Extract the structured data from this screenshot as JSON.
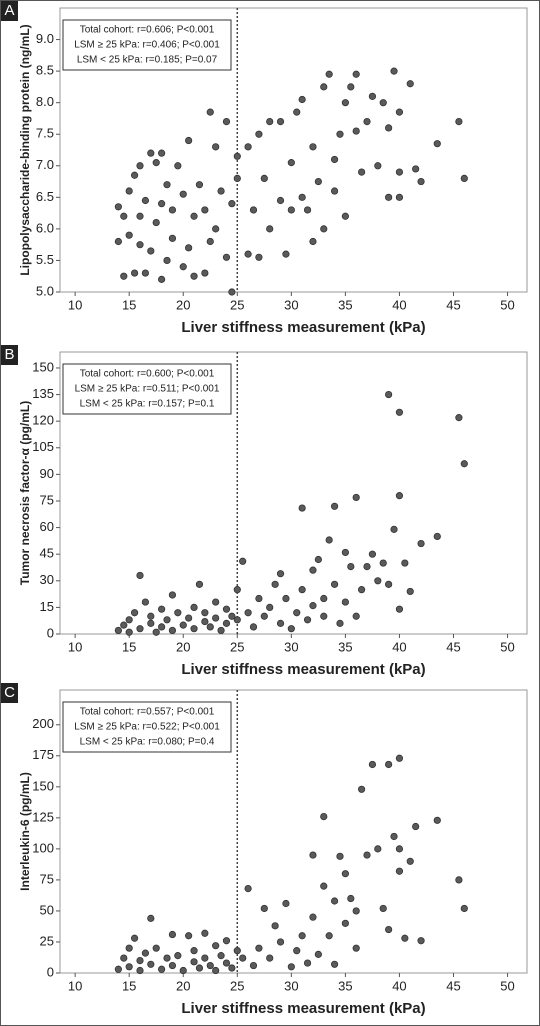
{
  "chart_data": [
    {
      "type": "scatter",
      "panel": "A",
      "xlabel": "Liver stiffness measurement (kPa)",
      "ylabel": "Lipopolysaccharide-binding protein (ng/mL)",
      "annotation": [
        "Total cohort: r=0.606; P<0.001",
        "LSM ≥ 25 kPa: r=0.406; P<0.001",
        "LSM < 25 kPa: r=0.185; P=0.07"
      ],
      "color": "#5a5a5a",
      "vline": 25,
      "xlim": [
        8.6,
        51.8
      ],
      "xticks": [
        10,
        15,
        20,
        25,
        30,
        35,
        40,
        45,
        50
      ],
      "ylim": [
        5.0,
        9.5
      ],
      "yticks": [
        {
          "value": 5,
          "label": "5.0"
        },
        5.5,
        {
          "value": 6,
          "label": "6.0"
        },
        6.5,
        {
          "value": 7,
          "label": "7.0"
        },
        7.5,
        {
          "value": 8,
          "label": "8.0"
        },
        8.5,
        {
          "value": 9,
          "label": "9.0"
        }
      ],
      "x": [
        14,
        14,
        14.5,
        14.5,
        15,
        15,
        15.5,
        15.5,
        16,
        16,
        16,
        16.5,
        16.5,
        17,
        17,
        17.5,
        17.5,
        18,
        18,
        18,
        18.5,
        18.5,
        19,
        19,
        19.5,
        20,
        20,
        20.5,
        20.5,
        21,
        21,
        21.5,
        22,
        22,
        22.5,
        22.5,
        23,
        23,
        23.5,
        24,
        24,
        24.5,
        24.5,
        25,
        25,
        26,
        26,
        26.5,
        27,
        27,
        27.5,
        28,
        28,
        29,
        29,
        29.5,
        30,
        30,
        30.5,
        31,
        31,
        31.5,
        32,
        32,
        32.5,
        33,
        33,
        33.5,
        34,
        34,
        34.5,
        35,
        35,
        35.5,
        36,
        36,
        36.5,
        37,
        37.5,
        38,
        38.5,
        39,
        39,
        39.5,
        40,
        40,
        40,
        41,
        41.5,
        42,
        43.5,
        45.5,
        46
      ],
      "y": [
        6.35,
        5.8,
        5.25,
        6.2,
        5.9,
        6.6,
        5.3,
        6.85,
        5.75,
        6.2,
        7.0,
        5.3,
        6.45,
        5.65,
        7.2,
        6.1,
        7.05,
        5.2,
        6.4,
        7.2,
        5.5,
        6.7,
        6.3,
        5.85,
        7.0,
        5.4,
        6.55,
        7.4,
        5.7,
        6.2,
        5.25,
        6.7,
        5.3,
        6.3,
        7.85,
        5.8,
        6.0,
        7.3,
        6.6,
        5.55,
        7.7,
        6.4,
        5.0,
        6.8,
        7.15,
        7.3,
        5.6,
        6.3,
        7.5,
        5.55,
        6.8,
        6.0,
        7.7,
        6.45,
        7.7,
        5.6,
        7.05,
        6.3,
        7.85,
        8.05,
        6.5,
        6.3,
        7.3,
        5.8,
        6.75,
        8.25,
        6.0,
        8.45,
        7.1,
        6.6,
        7.5,
        8.0,
        6.2,
        8.25,
        7.55,
        8.45,
        6.9,
        7.7,
        8.1,
        7.0,
        8.0,
        7.6,
        6.5,
        8.5,
        6.9,
        7.85,
        6.5,
        8.3,
        6.95,
        6.75,
        7.35,
        7.7,
        6.8
      ]
    },
    {
      "type": "scatter",
      "panel": "B",
      "xlabel": "Liver stiffness measurement (kPa)",
      "ylabel": "Tumor necrosis factor-α (pg/mL)",
      "annotation": [
        "Total cohort: r=0.600; P<0.001",
        "LSM ≥ 25 kPa: r=0.511; P<0.001",
        "LSM < 25 kPa: r=0.157; P=0.1"
      ],
      "color": "#5a5a5a",
      "vline": 25,
      "xlim": [
        8.6,
        51.8
      ],
      "xticks": [
        10,
        15,
        20,
        25,
        30,
        35,
        40,
        45,
        50
      ],
      "ylim": [
        0,
        159
      ],
      "yticks": [
        0,
        15,
        30,
        45,
        60,
        75,
        90,
        105,
        120,
        135,
        150
      ],
      "x": [
        14,
        14.5,
        15,
        15,
        15.5,
        16,
        16,
        16.5,
        17,
        17,
        17.5,
        18,
        18,
        18.5,
        19,
        19,
        19.5,
        20,
        20.5,
        21,
        21,
        21.5,
        22,
        22,
        22.5,
        23,
        23,
        23.5,
        24,
        24,
        24.5,
        25,
        25,
        25.5,
        26,
        26.5,
        27,
        27.5,
        28,
        28.5,
        29,
        29,
        29.5,
        30,
        30.5,
        31,
        31,
        31.5,
        32,
        32,
        32.5,
        33,
        33,
        33.5,
        34,
        34,
        34.5,
        35,
        35,
        35.5,
        36,
        36,
        36.5,
        37,
        37.5,
        38,
        38.5,
        39,
        39,
        39.5,
        40,
        40,
        40,
        40.5,
        41,
        42,
        43.5,
        45.5,
        46
      ],
      "y": [
        2,
        5,
        8,
        1,
        12,
        33,
        3,
        18,
        6,
        10,
        1,
        14,
        4,
        8,
        22,
        2,
        12,
        5,
        9,
        3,
        15,
        28,
        7,
        12,
        4,
        18,
        9,
        2,
        14,
        6,
        10,
        25,
        8,
        41,
        12,
        4,
        20,
        10,
        15,
        28,
        34,
        6,
        20,
        3,
        12,
        71,
        25,
        8,
        36,
        16,
        42,
        20,
        10,
        53,
        28,
        72,
        6,
        46,
        18,
        38,
        77,
        10,
        25,
        38,
        45,
        30,
        40,
        135,
        28,
        59,
        125,
        78,
        14,
        40,
        24,
        51,
        55,
        122,
        96
      ]
    },
    {
      "type": "scatter",
      "panel": "C",
      "xlabel": "Liver stiffness measurement (kPa)",
      "ylabel": "Interleukin-6 (pg/mL)",
      "annotation": [
        "Total cohort: r=0.557; P<0.001",
        "LSM ≥ 25 kPa: r=0.522; P<0.001",
        "LSM < 25 kPa: r=0.080; P=0.4"
      ],
      "color": "#5a5a5a",
      "vline": 25,
      "xlim": [
        8.6,
        51.8
      ],
      "xticks": [
        10,
        15,
        20,
        25,
        30,
        35,
        40,
        45,
        50
      ],
      "ylim": [
        0,
        228
      ],
      "yticks": [
        0,
        25,
        50,
        75,
        100,
        125,
        150,
        175,
        200
      ],
      "x": [
        14,
        14.5,
        15,
        15,
        15.5,
        16,
        16,
        16.5,
        17,
        17,
        17.5,
        18,
        18.5,
        19,
        19,
        19.5,
        20,
        20.5,
        21,
        21,
        21.5,
        22,
        22,
        22.5,
        23,
        23,
        23.5,
        24,
        24,
        24.5,
        25,
        25.5,
        26,
        26.5,
        27,
        27.5,
        28,
        28.5,
        29,
        29.5,
        30,
        30.5,
        31,
        31.5,
        32,
        32,
        32.5,
        33,
        33,
        33.5,
        34,
        34,
        34.5,
        35,
        35,
        35.5,
        36,
        36,
        36.5,
        37,
        37.5,
        38,
        38.5,
        39,
        39,
        39.5,
        40,
        40,
        40,
        40.5,
        41,
        41.5,
        42,
        43.5,
        45.5,
        46
      ],
      "y": [
        3,
        12,
        20,
        5,
        28,
        10,
        2,
        16,
        44,
        7,
        20,
        3,
        12,
        31,
        6,
        14,
        2,
        30,
        9,
        18,
        4,
        32,
        12,
        6,
        22,
        2,
        14,
        26,
        8,
        4,
        18,
        12,
        68,
        6,
        20,
        52,
        12,
        38,
        25,
        56,
        5,
        18,
        30,
        8,
        95,
        45,
        15,
        126,
        70,
        30,
        58,
        7,
        94,
        80,
        40,
        60,
        20,
        50,
        148,
        95,
        168,
        100,
        52,
        168,
        35,
        110,
        173,
        100,
        82,
        28,
        90,
        118,
        26,
        123,
        75,
        52
      ]
    }
  ]
}
